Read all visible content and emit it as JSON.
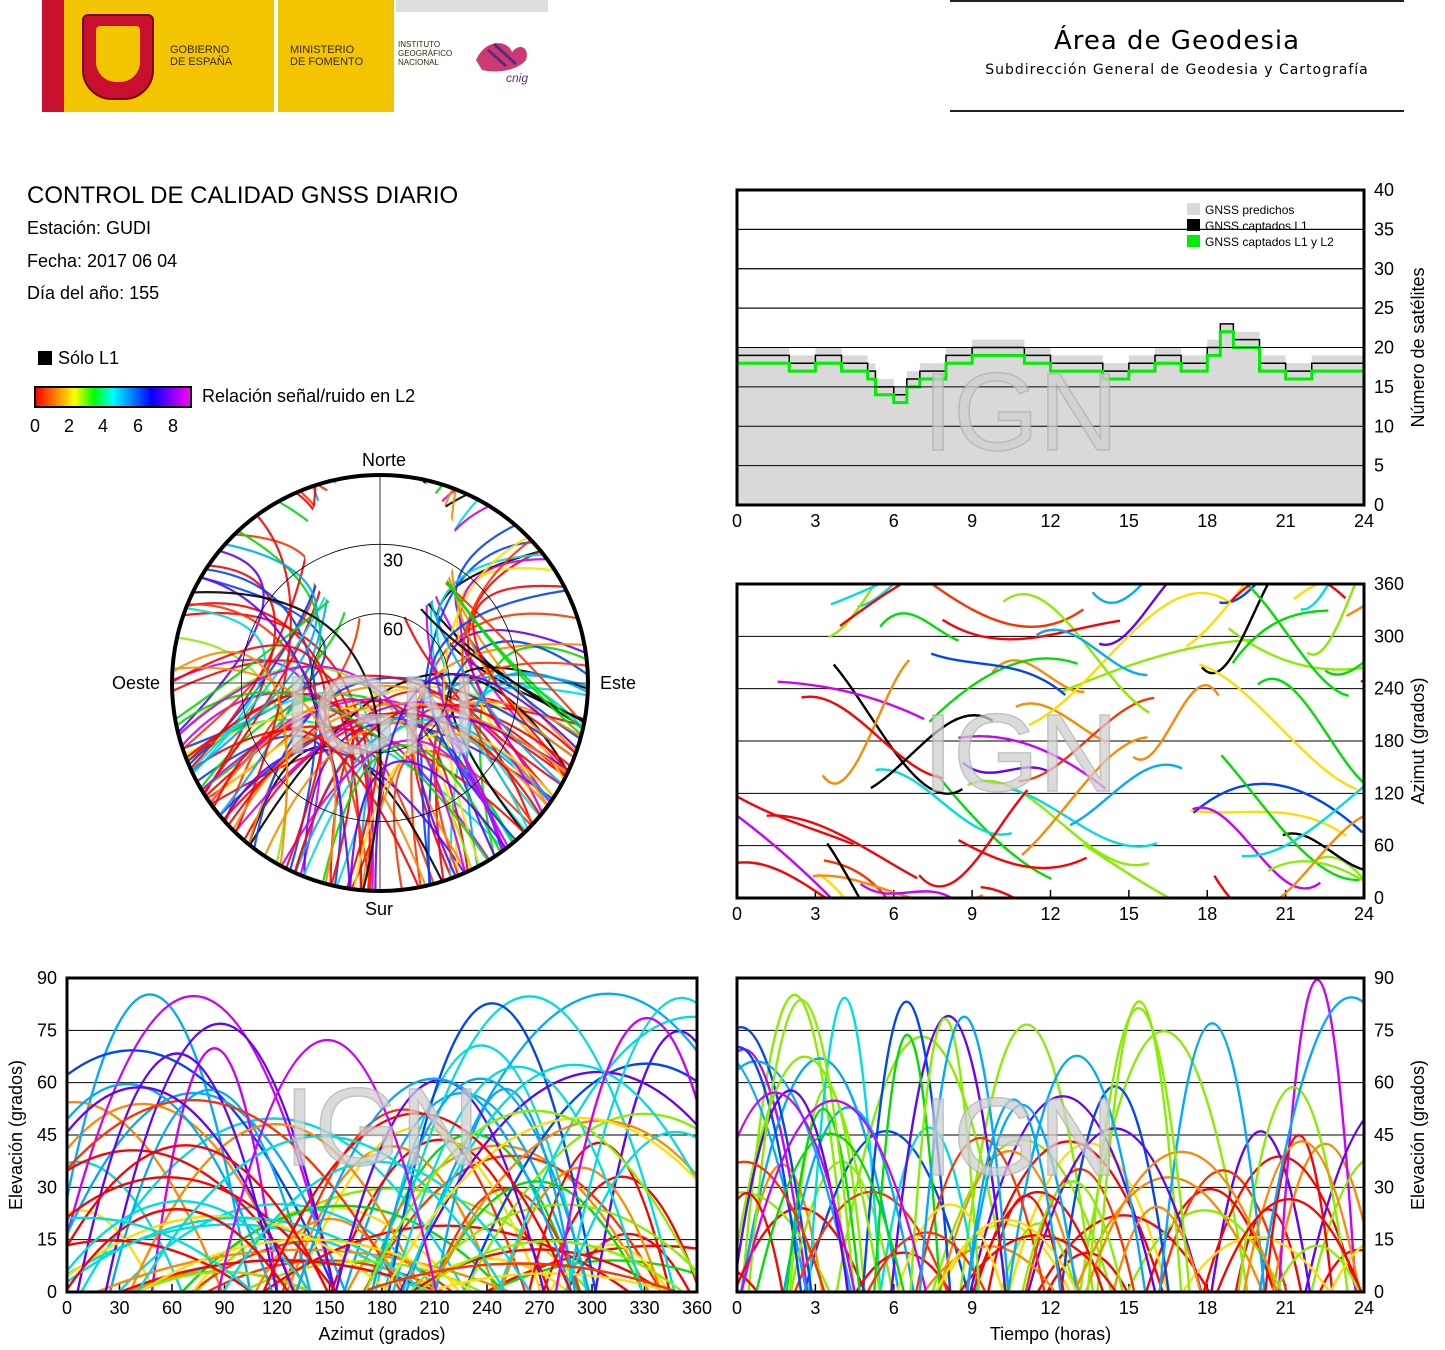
{
  "header": {
    "gobierno": "GOBIERNO\nDE ESPAÑA",
    "ministerio": "MINISTERIO\nDE FOMENTO",
    "instituto": "INSTITUTO\nGEOGRÁFICO\nNACIONAL",
    "cnig": "cnig",
    "area_title": "Área de Geodesia",
    "area_subtitle": "Subdirección General de Geodesia y Cartografía"
  },
  "report": {
    "title": "CONTROL DE CALIDAD GNSS DIARIO",
    "station": "Estación: GUDI",
    "date": "Fecha: 2017 06 04",
    "doy": "Día del año: 155",
    "legend_l1": "Sólo L1",
    "legend_snr": "Relación señal/ruido en L2",
    "colorbar_ticks": [
      "0",
      "2",
      "4",
      "6",
      "8"
    ]
  },
  "watermark": "IGN",
  "colors": {
    "predicted": "#d9d9d9",
    "l1": "#000000",
    "l1l2": "#00ee00",
    "grid": "#000000"
  },
  "chart_data": [
    {
      "type": "area",
      "id": "satellites",
      "xlabel": "",
      "ylabel": "Número de satélites",
      "xlim": [
        0,
        24
      ],
      "ylim": [
        0,
        40
      ],
      "xticks": [
        0,
        3,
        6,
        9,
        12,
        15,
        18,
        21,
        24
      ],
      "yticks": [
        0,
        5,
        10,
        15,
        20,
        25,
        30,
        35,
        40
      ],
      "legend": [
        "GNSS predichos",
        "GNSS captados L1",
        "GNSS captados L1 y L2"
      ],
      "legend_position": "top-right",
      "x": [
        0,
        1,
        2,
        3,
        4,
        5,
        5.3,
        6,
        6.5,
        7,
        8,
        9,
        10,
        11,
        12,
        13,
        14,
        15,
        16,
        17,
        18,
        18.5,
        19,
        20,
        21,
        22,
        23,
        24
      ],
      "series": [
        {
          "name": "GNSS predichos",
          "values": [
            20,
            20,
            19,
            20,
            19,
            18,
            16,
            15,
            17,
            18,
            20,
            21,
            21,
            20,
            19,
            19,
            18,
            19,
            20,
            19,
            21,
            23,
            22,
            19,
            18,
            19,
            19,
            18
          ]
        },
        {
          "name": "GNSS captados L1",
          "values": [
            19,
            19,
            18,
            19,
            18,
            17,
            15,
            14,
            16,
            17,
            19,
            20,
            20,
            19,
            18,
            18,
            17,
            18,
            19,
            18,
            20,
            23,
            21,
            18,
            17,
            18,
            18,
            17
          ]
        },
        {
          "name": "GNSS captados L1 y L2",
          "values": [
            18,
            18,
            17,
            18,
            17,
            16,
            14,
            13,
            15,
            16,
            18,
            19,
            19,
            18,
            17,
            17,
            16,
            17,
            18,
            17,
            19,
            22,
            20,
            17,
            16,
            17,
            17,
            16
          ]
        }
      ]
    },
    {
      "type": "scatter",
      "id": "skyplot",
      "labels": {
        "north": "Norte",
        "south": "Sur",
        "east": "Este",
        "west": "Oeste"
      },
      "rings": [
        "30",
        "60"
      ],
      "elevation_mask_deg": 35
    },
    {
      "type": "line",
      "id": "azimuth-time",
      "xlabel": "",
      "ylabel": "Azimut (grados)",
      "xlim": [
        0,
        24
      ],
      "ylim": [
        0,
        360
      ],
      "xticks": [
        0,
        3,
        6,
        9,
        12,
        15,
        18,
        21,
        24
      ],
      "yticks": [
        0,
        60,
        120,
        180,
        240,
        300,
        360
      ]
    },
    {
      "type": "line",
      "id": "elevation-azimuth",
      "xlabel": "Azimut (grados)",
      "ylabel": "Elevación (grados)",
      "xlim": [
        0,
        360
      ],
      "ylim": [
        0,
        90
      ],
      "xticks": [
        0,
        30,
        60,
        90,
        120,
        150,
        180,
        210,
        240,
        270,
        300,
        330,
        360
      ],
      "yticks": [
        0,
        15,
        30,
        45,
        60,
        75,
        90
      ]
    },
    {
      "type": "line",
      "id": "elevation-time",
      "xlabel": "Tiempo (horas)",
      "ylabel": "Elevación (grados)",
      "xlim": [
        0,
        24
      ],
      "ylim": [
        0,
        90
      ],
      "xticks": [
        0,
        3,
        6,
        9,
        12,
        15,
        18,
        21,
        24
      ],
      "yticks": [
        0,
        15,
        30,
        45,
        60,
        75,
        90
      ]
    }
  ]
}
